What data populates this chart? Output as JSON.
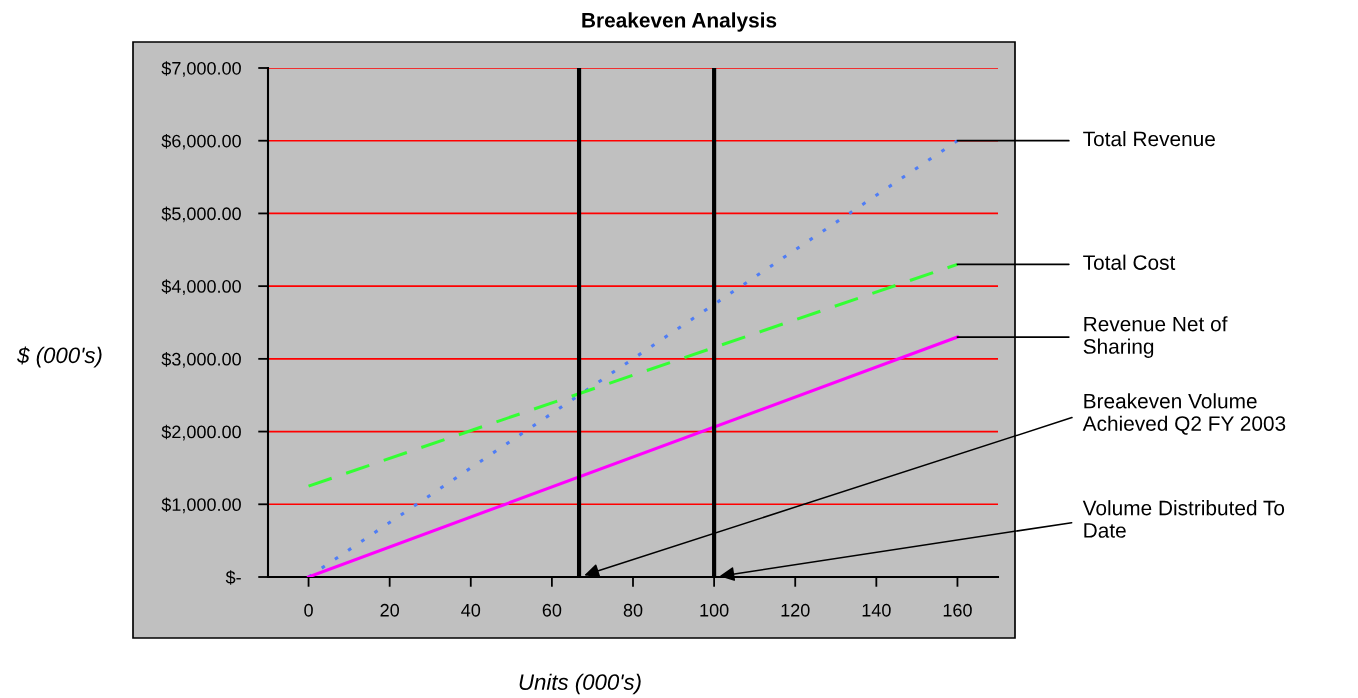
{
  "chart_data": {
    "type": "line",
    "title": "Breakeven Analysis",
    "xlabel": "Units (000's)",
    "ylabel": "$ (000's)",
    "series": [
      {
        "name": "Total Revenue",
        "color": "#4f7df5",
        "values": [
          0,
          6000
        ],
        "line_style": "dotted"
      },
      {
        "name": "Total Cost",
        "color": "#33ff33",
        "values": [
          1250,
          4300
        ],
        "line_style": "dashed"
      },
      {
        "name": "Revenue Net of Sharing",
        "color": "#ff00ff",
        "values": [
          0,
          3300
        ],
        "line_style": "solid"
      }
    ],
    "x": [
      0,
      160
    ],
    "xlim": [
      -10,
      170
    ],
    "xticks": [
      0,
      20,
      40,
      60,
      80,
      100,
      120,
      140,
      160
    ],
    "ylim": [
      0,
      7000
    ],
    "yticks": [
      {
        "value": 0,
        "label": "$-"
      },
      {
        "value": 1000,
        "label": "$1,000.00"
      },
      {
        "value": 2000,
        "label": "$2,000.00"
      },
      {
        "value": 3000,
        "label": "$3,000.00"
      },
      {
        "value": 4000,
        "label": "$4,000.00"
      },
      {
        "value": 5000,
        "label": "$5,000.00"
      },
      {
        "value": 6000,
        "label": "$6,000.00"
      },
      {
        "value": 7000,
        "label": "$7,000.00"
      }
    ],
    "ref_lines": [
      {
        "axis": "x",
        "value": 66.7,
        "label": "Breakeven Volume Achieved Q2 FY 2003",
        "color": "#000000",
        "line_style": "solid"
      },
      {
        "axis": "x",
        "value": 100,
        "label": "Volume Distributed To Date",
        "color": "#000000",
        "line_style": "solid"
      }
    ],
    "grid": "y",
    "legend": false,
    "marker": "none"
  }
}
